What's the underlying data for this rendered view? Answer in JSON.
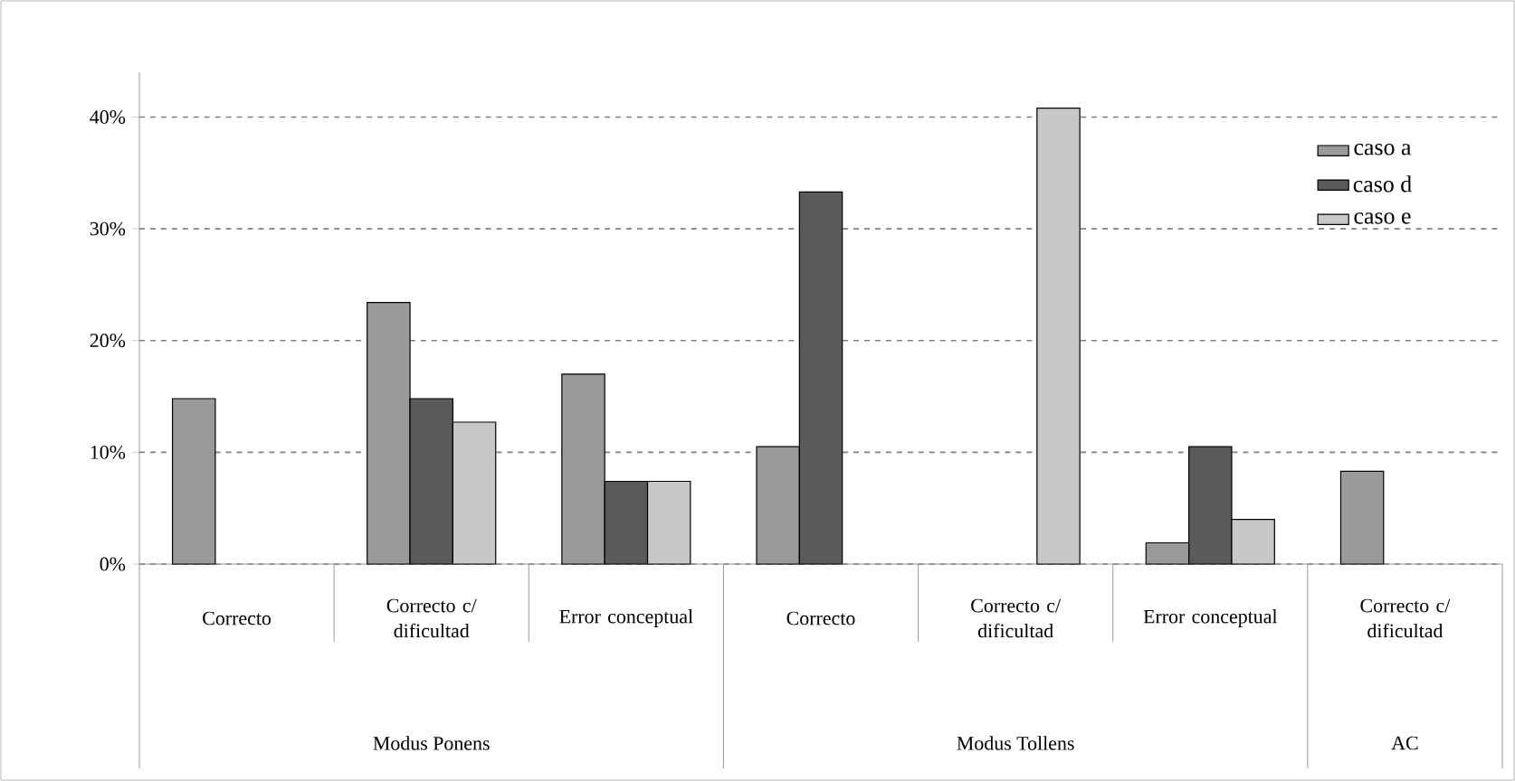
{
  "chart_data": {
    "type": "bar",
    "categories": [
      "Correcto",
      "Correcto c/ dificultad",
      "Error conceptual",
      "Correcto",
      "Correcto c/ dificultad",
      "Error conceptual",
      "Correcto c/ dificultad"
    ],
    "series": [
      {
        "name": "caso a",
        "color": "#9a9a9a",
        "values": [
          14.8,
          23.4,
          17.0,
          10.5,
          null,
          1.9,
          8.3
        ]
      },
      {
        "name": "caso d",
        "color": "#5a5a5a",
        "values": [
          null,
          14.8,
          7.4,
          33.3,
          null,
          10.5,
          null
        ]
      },
      {
        "name": "caso e",
        "color": "#c8c8c8",
        "values": [
          null,
          12.7,
          7.4,
          null,
          40.8,
          4.0,
          null
        ]
      }
    ],
    "annotations": [
      "Modus Ponens",
      "Modus Tollens",
      "AC"
    ],
    "ylim": [
      0,
      44
    ],
    "yticks": [
      {
        "value": 0,
        "label": "0%"
      },
      {
        "value": 10,
        "label": "10%"
      },
      {
        "value": 20,
        "label": "20%"
      },
      {
        "value": 30,
        "label": "30%"
      },
      {
        "value": 40,
        "label": "40%"
      }
    ],
    "grid": "y",
    "legend": "right"
  }
}
